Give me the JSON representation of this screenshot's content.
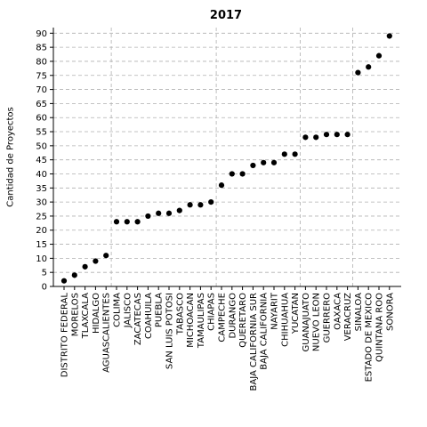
{
  "chart_data": {
    "type": "scatter",
    "title": "2017",
    "xlabel": "",
    "ylabel": "Cantidad de Proyectos",
    "ylim": [
      0,
      92
    ],
    "yticks": [
      0,
      5,
      10,
      15,
      20,
      25,
      30,
      35,
      40,
      45,
      50,
      55,
      60,
      65,
      70,
      75,
      80,
      85,
      90
    ],
    "grid": true,
    "categories": [
      "DISTRITO FEDERAL",
      "MORELOS",
      "TLAXCALA",
      "HIDALGO",
      "AGUASCALIENTES",
      "COLIMA",
      "JALISCO",
      "ZACATECAS",
      "COAHUILA",
      "PUEBLA",
      "SAN LUIS POTOSI",
      "TABASCO",
      "MICHOACAN",
      "TAMAULIPAS",
      "CHIAPAS",
      "CAMPECHE",
      "DURANGO",
      "QUERETARO",
      "BAJA CALIFORNIA SUR",
      "BAJA CALIFORNIA",
      "NAYARIT",
      "CHIHUAHUA",
      "YUCATAN",
      "GUANAJUATO",
      "NUEVO LEON",
      "GUERRERO",
      "OAXACA",
      "VERACRUZ",
      "SINALOA",
      "ESTADO DE MEXICO",
      "QUINTANA ROO",
      "SONORA"
    ],
    "values": [
      2,
      4,
      7,
      9,
      11,
      23,
      23,
      23,
      25,
      26,
      26,
      27,
      29,
      29,
      30,
      36,
      40,
      40,
      43,
      44,
      44,
      47,
      47,
      53,
      53,
      54,
      54,
      54,
      76,
      78,
      82,
      89
    ],
    "vertical_separators_after_index": [
      4,
      14,
      22,
      27
    ],
    "marker_color": "#000000"
  }
}
